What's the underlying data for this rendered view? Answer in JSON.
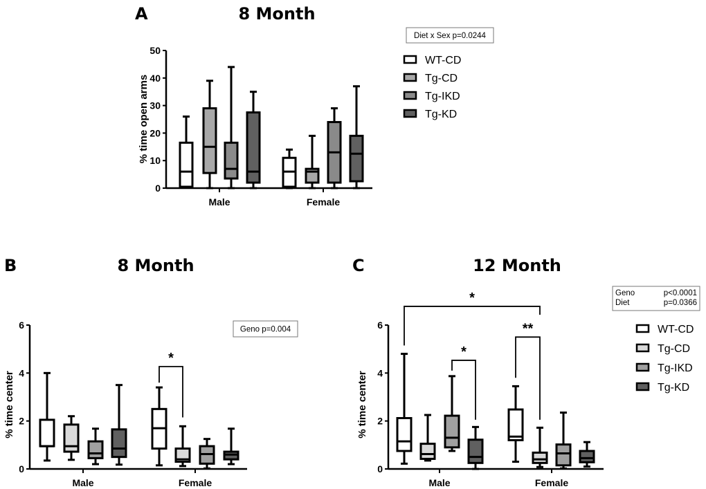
{
  "chart_data": [
    {
      "panel": "A",
      "type": "box",
      "title": "8 Month",
      "ylabel": "% time open arms",
      "ylim": [
        0,
        50
      ],
      "yticks": [
        0,
        10,
        20,
        30,
        40,
        50
      ],
      "categories": [
        "Male",
        "Female"
      ],
      "stats_text": [
        "Diet x Sex  p=0.0244"
      ],
      "legend_position": "right",
      "series": [
        {
          "name": "WT-CD",
          "color": "#ffffff",
          "boxes": [
            {
              "min": 0.5,
              "q1": 0.5,
              "median": 6,
              "q3": 16.5,
              "max": 26
            },
            {
              "min": 0,
              "q1": 0.5,
              "median": 6,
              "q3": 11,
              "max": 14
            }
          ]
        },
        {
          "name": "Tg-CD",
          "color": "#a8a8a8",
          "boxes": [
            {
              "min": 0,
              "q1": 5.5,
              "median": 15,
              "q3": 29,
              "max": 39
            },
            {
              "min": 0,
              "q1": 2,
              "median": 6,
              "q3": 7,
              "max": 19
            }
          ]
        },
        {
          "name": "Tg-IKD",
          "color": "#8a8a8a",
          "boxes": [
            {
              "min": 0,
              "q1": 3.5,
              "median": 7,
              "q3": 16.5,
              "max": 44
            },
            {
              "min": 0,
              "q1": 2,
              "median": 13,
              "q3": 24,
              "max": 29
            }
          ]
        },
        {
          "name": "Tg-KD",
          "color": "#606060",
          "boxes": [
            {
              "min": 0,
              "q1": 2,
              "median": 6,
              "q3": 27.5,
              "max": 35
            },
            {
              "min": 0,
              "q1": 2.5,
              "median": 12.5,
              "q3": 19,
              "max": 37
            }
          ]
        }
      ],
      "significance": []
    },
    {
      "panel": "B",
      "type": "box",
      "title": "8 Month",
      "ylabel": "% time center",
      "ylim": [
        0,
        6
      ],
      "yticks": [
        0,
        2,
        4,
        6
      ],
      "categories": [
        "Male",
        "Female"
      ],
      "stats_text": [
        "Geno p=0.004"
      ],
      "series": [
        {
          "color": "#ffffff",
          "boxes": [
            {
              "min": 0.35,
              "q1": 0.95,
              "median": 0.95,
              "q3": 2.05,
              "max": 4.0
            },
            {
              "min": 0.15,
              "q1": 0.85,
              "median": 1.7,
              "q3": 2.5,
              "max": 3.4
            }
          ]
        },
        {
          "color": "#d9d9d9",
          "boxes": [
            {
              "min": 0.38,
              "q1": 0.72,
              "median": 0.95,
              "q3": 1.85,
              "max": 2.2
            },
            {
              "min": 0.12,
              "q1": 0.3,
              "median": 0.4,
              "q3": 0.85,
              "max": 1.78
            }
          ]
        },
        {
          "color": "#a0a0a0",
          "boxes": [
            {
              "min": 0.2,
              "q1": 0.45,
              "median": 0.65,
              "q3": 1.15,
              "max": 1.68
            },
            {
              "min": 0.02,
              "q1": 0.22,
              "median": 0.62,
              "q3": 0.95,
              "max": 1.25
            }
          ]
        },
        {
          "color": "#606060",
          "boxes": [
            {
              "min": 0.18,
              "q1": 0.5,
              "median": 0.85,
              "q3": 1.65,
              "max": 3.5
            },
            {
              "min": 0.2,
              "q1": 0.4,
              "median": 0.6,
              "q3": 0.72,
              "max": 1.68
            }
          ]
        }
      ],
      "significance": [
        {
          "label": "*",
          "from": [
            1,
            0
          ],
          "to": [
            1,
            1
          ],
          "top": 4.27,
          "left_end": 3.6,
          "right_end": 2.15
        }
      ]
    },
    {
      "panel": "C",
      "type": "box",
      "title": "12 Month",
      "ylabel": "% time center",
      "ylim": [
        0,
        6
      ],
      "yticks": [
        0,
        2,
        4,
        6
      ],
      "categories": [
        "Male",
        "Female"
      ],
      "stats_text": [
        "Geno",
        "p<0.0001",
        "Diet",
        "p=0.0366"
      ],
      "legend_position": "right",
      "series": [
        {
          "name": "WT-CD",
          "color": "#ffffff",
          "boxes": [
            {
              "min": 0.22,
              "q1": 0.75,
              "median": 1.15,
              "q3": 2.12,
              "max": 4.8
            },
            {
              "min": 0.3,
              "q1": 1.2,
              "median": 1.35,
              "q3": 2.48,
              "max": 3.45
            }
          ]
        },
        {
          "name": "Tg-CD",
          "color": "#d9d9d9",
          "boxes": [
            {
              "min": 0.35,
              "q1": 0.42,
              "median": 0.62,
              "q3": 1.05,
              "max": 2.25
            },
            {
              "min": 0.08,
              "q1": 0.25,
              "median": 0.4,
              "q3": 0.68,
              "max": 1.72
            }
          ]
        },
        {
          "name": "Tg-IKD",
          "color": "#a0a0a0",
          "boxes": [
            {
              "min": 0.75,
              "q1": 0.9,
              "median": 1.3,
              "q3": 2.22,
              "max": 3.87
            },
            {
              "min": 0.02,
              "q1": 0.15,
              "median": 0.65,
              "q3": 1.02,
              "max": 2.35
            }
          ]
        },
        {
          "name": "Tg-KD",
          "color": "#606060",
          "boxes": [
            {
              "min": 0.0,
              "q1": 0.25,
              "median": 0.5,
              "q3": 1.22,
              "max": 1.75
            },
            {
              "min": 0.1,
              "q1": 0.28,
              "median": 0.45,
              "q3": 0.75,
              "max": 1.12
            }
          ]
        }
      ],
      "significance": [
        {
          "label": "*",
          "from": [
            0,
            0
          ],
          "to": [
            1,
            1
          ],
          "top": 6.78,
          "left_end": 5.15,
          "right_end": 6.43
        },
        {
          "label": "**",
          "from": [
            1,
            0
          ],
          "to": [
            1,
            1
          ],
          "top": 5.5,
          "left_end": 3.8,
          "right_end": 2.05
        },
        {
          "label": "*",
          "from": [
            0,
            2
          ],
          "to": [
            0,
            3
          ],
          "top": 4.53,
          "left_end": 4.1,
          "right_end": 2.05
        }
      ]
    }
  ]
}
